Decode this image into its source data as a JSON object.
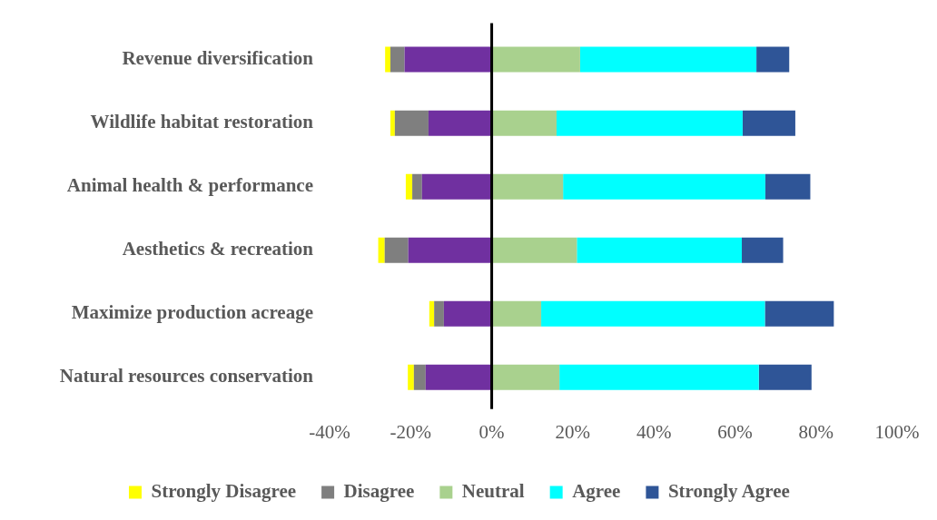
{
  "chart_data": {
    "type": "bar",
    "orientation": "horizontal",
    "stacked": true,
    "categories": [
      "Revenue diversification",
      "Wildlife habitat restoration",
      "Animal health & performance",
      "Aesthetics & recreation",
      "Maximize production acreage",
      "Natural resources conservation"
    ],
    "series": [
      {
        "color": "#7030a0",
        "values": [
          -21.5,
          -15.6,
          -17.2,
          -20.6,
          -11.8,
          -16.3
        ]
      },
      {
        "name": "Disagree",
        "color": "#7f7f7f",
        "values": [
          -3.5,
          -8.3,
          -2.4,
          -5.8,
          -2.4,
          -2.9
        ]
      },
      {
        "name": "Strongly Disagree",
        "color": "#ffff00",
        "values": [
          -1.3,
          -1.1,
          -1.6,
          -1.6,
          -1.2,
          -1.5
        ]
      },
      {
        "name": "Neutral",
        "color": "#a9d18e",
        "values": [
          21.8,
          16.0,
          17.6,
          21.0,
          12.2,
          16.7
        ]
      },
      {
        "name": "Agree",
        "color": "#00ffff",
        "values": [
          43.5,
          45.9,
          49.9,
          40.7,
          55.2,
          49.2
        ]
      },
      {
        "name": "Strongly Agree",
        "color": "#2f5597",
        "values": [
          8.1,
          13.0,
          11.1,
          10.2,
          17.0,
          13.0
        ]
      }
    ],
    "xlim": [
      -40,
      100
    ],
    "xticks": [
      {
        "value": -40,
        "label": "-40%"
      },
      {
        "value": -20,
        "label": "-20%"
      },
      {
        "value": 0,
        "label": "0%"
      },
      {
        "value": 20,
        "label": "20%"
      },
      {
        "value": 40,
        "label": "40%"
      },
      {
        "value": 60,
        "label": "60%"
      },
      {
        "value": 80,
        "label": "80%"
      },
      {
        "value": 100,
        "label": "100%"
      }
    ],
    "ref_lines": [
      {
        "axis": "x",
        "value": 0,
        "color": "#000000"
      }
    ],
    "grid": false,
    "legend": "bottom"
  }
}
